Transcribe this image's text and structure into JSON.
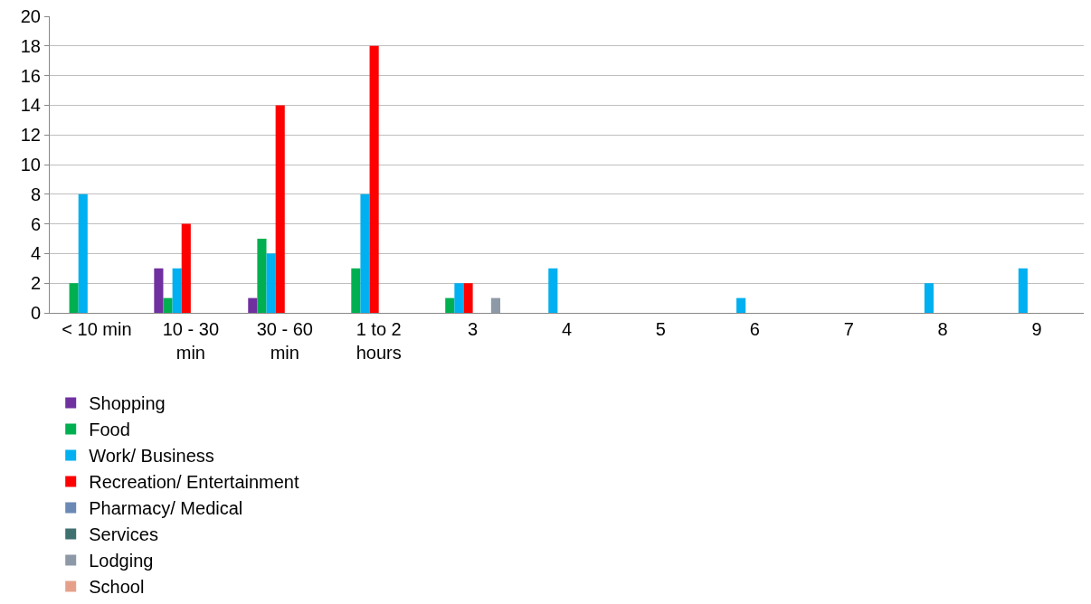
{
  "chart_data": {
    "type": "bar",
    "categories": [
      "< 10 min",
      "10 - 30 min",
      "30 - 60 min",
      "1 to 2 hours",
      "3",
      "4",
      "5",
      "6",
      "7",
      "8",
      "9"
    ],
    "series": [
      {
        "name": "Shopping",
        "color": "#7030a0",
        "values": [
          0,
          3,
          1,
          0,
          0,
          0,
          0,
          0,
          0,
          0,
          0
        ]
      },
      {
        "name": "Food",
        "color": "#00b050",
        "values": [
          2,
          1,
          5,
          3,
          1,
          0,
          0,
          0,
          0,
          0,
          0
        ]
      },
      {
        "name": "Work/ Business",
        "color": "#00b0f0",
        "values": [
          8,
          3,
          4,
          8,
          2,
          3,
          0,
          1,
          0,
          2,
          3
        ]
      },
      {
        "name": "Recreation/ Entertainment",
        "color": "#ff0000",
        "values": [
          0,
          6,
          14,
          18,
          2,
          0,
          0,
          0,
          0,
          0,
          0
        ]
      },
      {
        "name": "Pharmacy/ Medical",
        "color": "#6a8ab5",
        "values": [
          0,
          0,
          0,
          0,
          0,
          0,
          0,
          0,
          0,
          0,
          0
        ]
      },
      {
        "name": "Services",
        "color": "#3f7070",
        "values": [
          0,
          0,
          0,
          0,
          0,
          0,
          0,
          0,
          0,
          0,
          0
        ]
      },
      {
        "name": "Lodging",
        "color": "#8e99a8",
        "values": [
          0,
          0,
          0,
          0,
          1,
          0,
          0,
          0,
          0,
          0,
          0
        ]
      },
      {
        "name": "School",
        "color": "#e6a08a",
        "values": [
          0,
          0,
          0,
          0,
          0,
          0,
          0,
          0,
          0,
          0,
          0
        ]
      }
    ],
    "ylim": [
      0,
      20
    ],
    "yticks": [
      0,
      2,
      4,
      6,
      8,
      10,
      12,
      14,
      16,
      18,
      20
    ],
    "grid": "y",
    "legend": "bottom"
  }
}
